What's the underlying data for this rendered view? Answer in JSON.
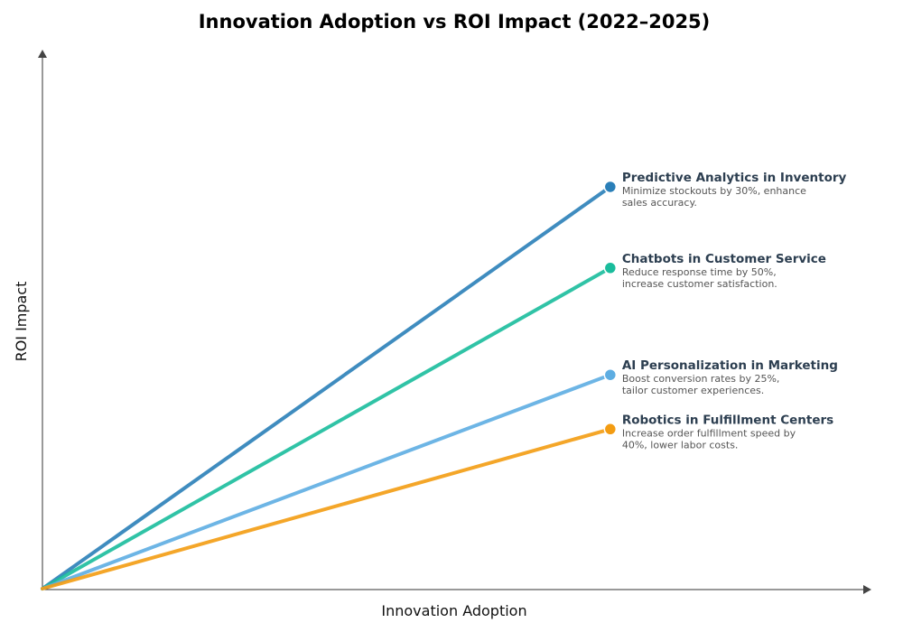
{
  "chart_data": {
    "type": "line",
    "title": "Innovation Adoption vs ROI Impact (2022–2025)",
    "xlabel": "Innovation Adoption",
    "ylabel": "ROI Impact",
    "xlim": [
      0,
      1
    ],
    "ylim": [
      0,
      1
    ],
    "grid": false,
    "series": [
      {
        "name": "Predictive Analytics in Inventory",
        "description": [
          "Minimize stockouts by 30%, enhance",
          "sales accuracy."
        ],
        "color": "#2a7fb8",
        "x": [
          0,
          0.685
        ],
        "y": [
          0,
          0.748
        ]
      },
      {
        "name": "Chatbots in Customer Service",
        "description": [
          "Reduce response time by 50%,",
          "increase customer satisfaction."
        ],
        "color": "#1abc9c",
        "x": [
          0,
          0.685
        ],
        "y": [
          0,
          0.597
        ]
      },
      {
        "name": "AI Personalization in Marketing",
        "description": [
          "Boost conversion rates by 25%,",
          "tailor customer experiences."
        ],
        "color": "#5dade2",
        "x": [
          0,
          0.685
        ],
        "y": [
          0,
          0.398
        ]
      },
      {
        "name": "Robotics in Fulfillment Centers",
        "description": [
          "Increase order fulfillment speed by",
          "40%, lower labor costs."
        ],
        "color": "#f39c12",
        "x": [
          0,
          0.685
        ],
        "y": [
          0,
          0.297
        ]
      }
    ]
  }
}
